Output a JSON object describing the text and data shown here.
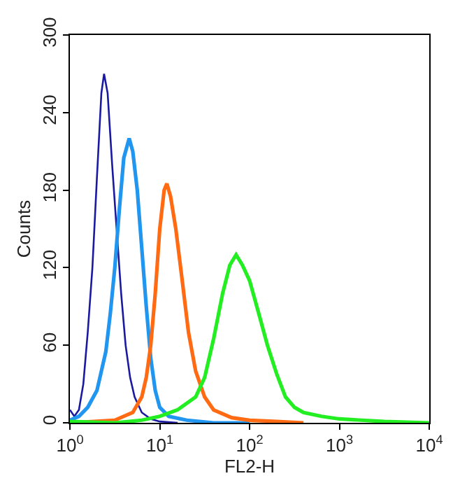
{
  "chart_data": {
    "type": "line",
    "xlabel": "FL2-H",
    "ylabel": "Counts",
    "log": "x",
    "marker": "none",
    "line_style": "solid",
    "xlim": [
      1,
      10000
    ],
    "ylim": [
      0,
      300
    ],
    "xticks": [
      {
        "value": 1,
        "label": "10$^{0}$"
      },
      {
        "value": 10,
        "label": "10$^{1}$"
      },
      {
        "value": 100,
        "label": "10$^{2}$"
      },
      {
        "value": 1000,
        "label": "10$^{3}$"
      },
      {
        "value": 10000,
        "label": "10$^{4}$"
      }
    ],
    "yticks": [
      0,
      60,
      120,
      180,
      240,
      300
    ],
    "series": [
      {
        "color": "#1a1aa0",
        "x": [
          1,
          1.12,
          1.26,
          1.41,
          1.58,
          1.78,
          2.0,
          2.24,
          2.4,
          2.63,
          2.95,
          3.31,
          3.72,
          4.17,
          4.68,
          5.25,
          6.31,
          7.94,
          10,
          15.8
        ],
        "values": [
          10,
          5,
          10,
          30,
          70,
          120,
          190,
          255,
          270,
          255,
          200,
          150,
          100,
          60,
          35,
          20,
          8,
          3,
          1,
          0
        ]
      },
      {
        "color": "#2196f0",
        "x": [
          1,
          1.26,
          1.58,
          2.0,
          2.51,
          2.82,
          3.16,
          3.55,
          3.98,
          4.57,
          5.01,
          5.62,
          6.31,
          7.08,
          7.94,
          8.91,
          10,
          12.6,
          20,
          39.8,
          100
        ],
        "values": [
          2,
          5,
          12,
          25,
          55,
          85,
          120,
          165,
          205,
          220,
          210,
          180,
          135,
          90,
          50,
          25,
          12,
          5,
          2,
          0,
          0
        ]
      },
      {
        "color": "#ff6a13",
        "x": [
          1,
          3.16,
          5.01,
          6.31,
          7.08,
          7.94,
          8.91,
          10,
          11.2,
          12.0,
          13.2,
          15.1,
          17.8,
          20.9,
          25.1,
          31.6,
          39.8,
          63.1,
          100,
          200,
          398
        ],
        "values": [
          0,
          2,
          8,
          20,
          35,
          60,
          100,
          150,
          180,
          185,
          175,
          150,
          110,
          70,
          40,
          20,
          10,
          4,
          2,
          1,
          0
        ]
      },
      {
        "color": "#22ee22",
        "x": [
          1,
          3.16,
          6.31,
          10,
          15.8,
          25.1,
          31.6,
          39.8,
          50.1,
          60.3,
          70.8,
          83.2,
          100,
          126,
          158,
          200,
          251,
          316,
          398,
          631,
          1000,
          3162,
          10000
        ],
        "values": [
          1,
          0,
          2,
          5,
          10,
          20,
          35,
          65,
          100,
          122,
          130,
          122,
          110,
          85,
          60,
          38,
          20,
          12,
          8,
          5,
          3,
          1,
          0
        ]
      }
    ]
  }
}
